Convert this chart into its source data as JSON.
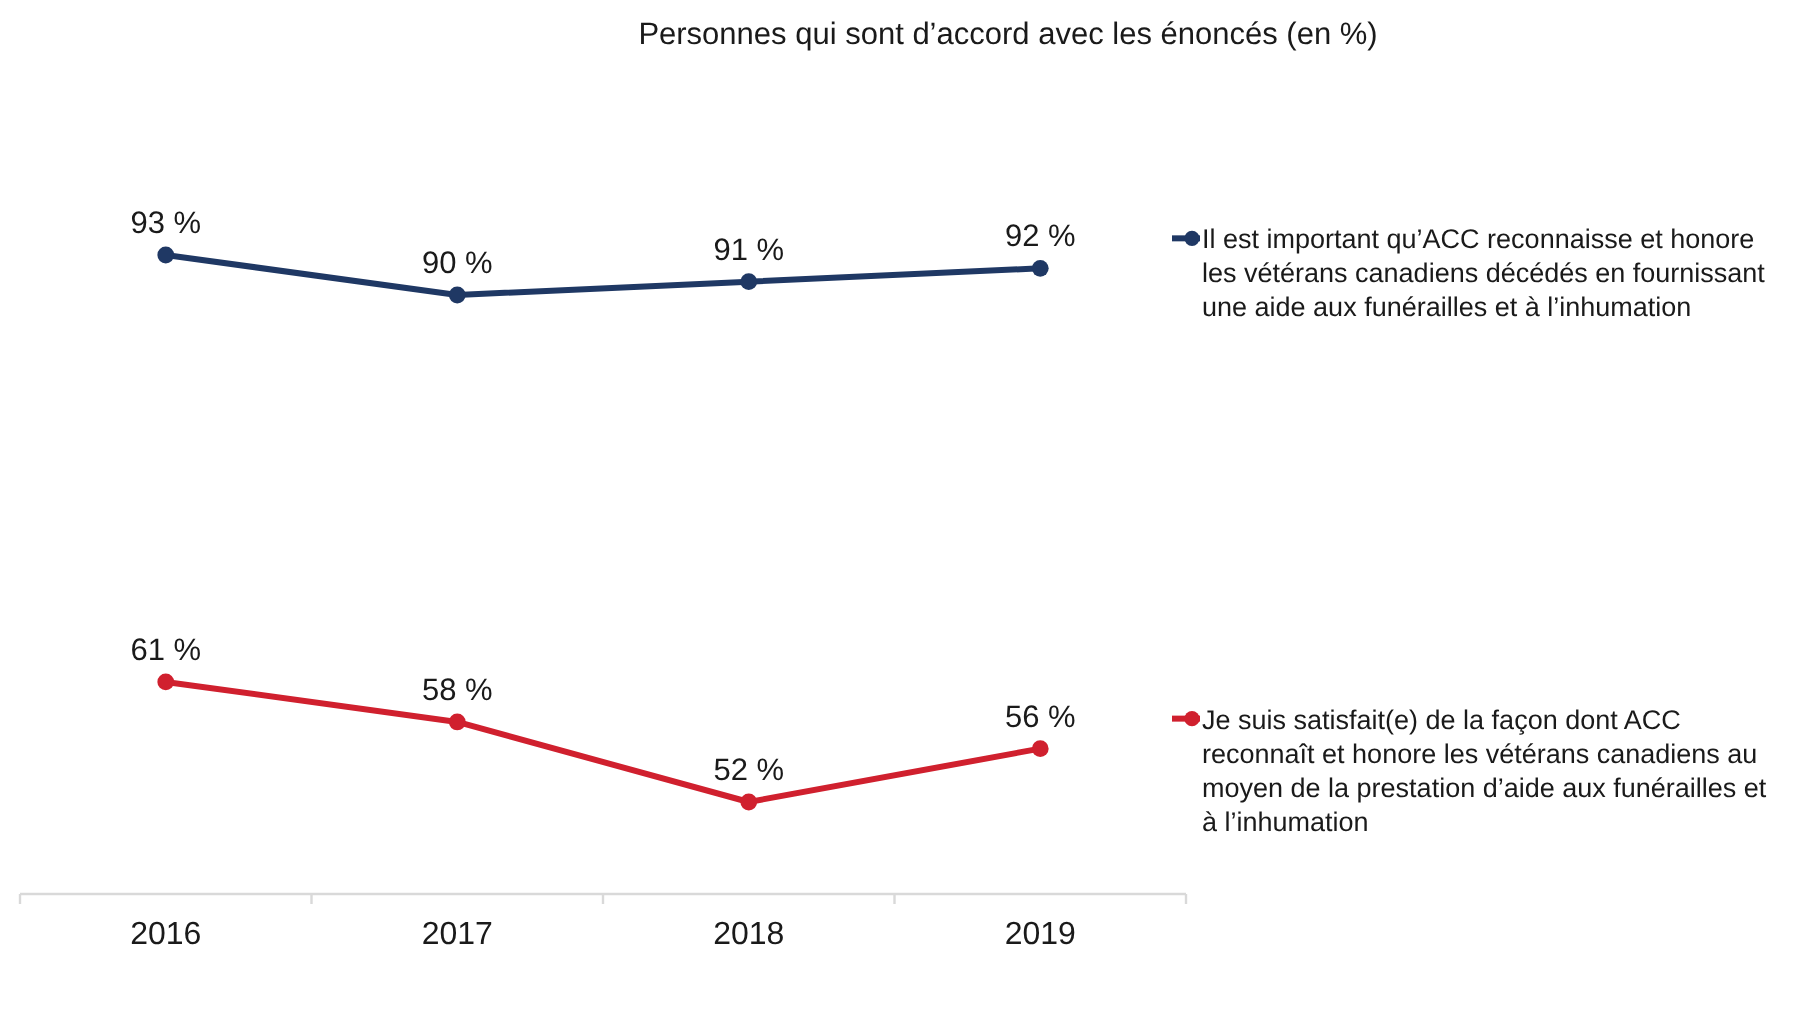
{
  "chart_data": {
    "type": "line",
    "title": "Personnes qui sont d’accord avec les énoncés (en %)",
    "categories": [
      "2016",
      "2017",
      "2018",
      "2019"
    ],
    "series": [
      {
        "name": "Il est important qu’ACC reconnaisse et honore les vétérans canadiens décédés en fournissant une aide aux funérailles et à l’inhumation",
        "color": "#1f3864",
        "values": [
          93,
          90,
          91,
          92
        ],
        "value_labels": [
          "93 %",
          "90 %",
          "91 %",
          "92 %"
        ]
      },
      {
        "name": "Je suis satisfait(e) de la façon dont ACC reconnaît et honore les vétérans canadiens au moyen de la prestation d’aide aux funérailles et à l’inhumation",
        "color": "#d0202e",
        "values": [
          61,
          58,
          52,
          56
        ],
        "value_labels": [
          "61 %",
          "58 %",
          "52 %",
          "56 %"
        ]
      }
    ],
    "tick_labels": "x",
    "legend": "right",
    "marker": "circle",
    "line_style": "solid"
  }
}
